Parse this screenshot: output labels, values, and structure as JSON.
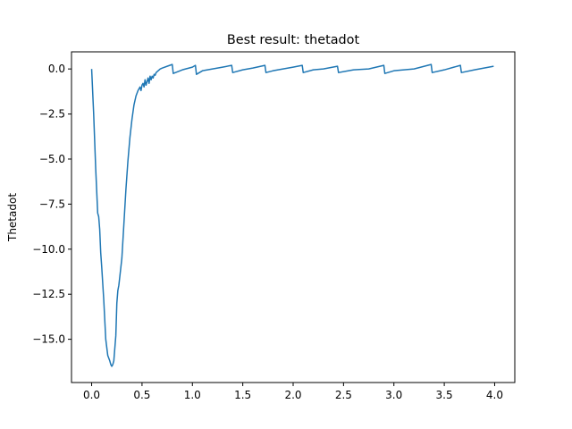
{
  "chart_data": {
    "type": "line",
    "title": "Best result: thetadot",
    "xlabel": "",
    "ylabel": "Thetadot",
    "xlim": [
      -0.2,
      4.2
    ],
    "ylim": [
      -17.4,
      0.95
    ],
    "grid": false,
    "xticks": [
      0.0,
      0.5,
      1.0,
      1.5,
      2.0,
      2.5,
      3.0,
      3.5,
      4.0
    ],
    "xtick_labels": [
      "0.0",
      "0.5",
      "1.0",
      "1.5",
      "2.0",
      "2.5",
      "3.0",
      "3.5",
      "4.0"
    ],
    "yticks": [
      0.0,
      -2.5,
      -5.0,
      -7.5,
      -10.0,
      -12.5,
      -15.0
    ],
    "ytick_labels": [
      "0.0",
      "−2.5",
      "−5.0",
      "−7.5",
      "−10.0",
      "−12.5",
      "−15.0"
    ],
    "colors": {
      "line": "#1f77b4",
      "axes": "#000000",
      "background": "#ffffff"
    },
    "series": [
      {
        "x": [
          0.0,
          0.02,
          0.04,
          0.06,
          0.07,
          0.08,
          0.09,
          0.1,
          0.12,
          0.14,
          0.16,
          0.18,
          0.19,
          0.2,
          0.21,
          0.22,
          0.23,
          0.24,
          0.25,
          0.26,
          0.27,
          0.28,
          0.3,
          0.32,
          0.34,
          0.36,
          0.38,
          0.4,
          0.42,
          0.44,
          0.46,
          0.48,
          0.49,
          0.5,
          0.51,
          0.52,
          0.53,
          0.54,
          0.55,
          0.56,
          0.57,
          0.58,
          0.59,
          0.6,
          0.61,
          0.62,
          0.63,
          0.64,
          0.66,
          0.68,
          0.7,
          0.75,
          0.8,
          0.81,
          0.9,
          1.0,
          1.03,
          1.04,
          1.1,
          1.2,
          1.3,
          1.39,
          1.4,
          1.5,
          1.6,
          1.72,
          1.73,
          1.8,
          1.9,
          2.0,
          2.09,
          2.1,
          2.2,
          2.3,
          2.44,
          2.45,
          2.6,
          2.75,
          2.9,
          2.91,
          3.0,
          3.2,
          3.37,
          3.38,
          3.5,
          3.66,
          3.67,
          3.8,
          3.99
        ],
        "y": [
          0.0,
          -2.5,
          -5.5,
          -8.0,
          -8.2,
          -8.9,
          -10.2,
          -11.0,
          -12.8,
          -15.0,
          -15.9,
          -16.2,
          -16.4,
          -16.5,
          -16.4,
          -16.2,
          -15.5,
          -14.8,
          -13.0,
          -12.3,
          -12.0,
          -11.5,
          -10.5,
          -8.6,
          -6.7,
          -5.1,
          -3.8,
          -2.8,
          -2.0,
          -1.5,
          -1.2,
          -1.0,
          -1.2,
          -0.9,
          -0.8,
          -1.0,
          -0.6,
          -0.9,
          -0.7,
          -0.5,
          -0.8,
          -0.4,
          -0.6,
          -0.4,
          -0.5,
          -0.3,
          -0.35,
          -0.2,
          -0.1,
          0.0,
          0.05,
          0.15,
          0.25,
          -0.25,
          -0.05,
          0.1,
          0.2,
          -0.3,
          -0.1,
          0.0,
          0.1,
          0.2,
          -0.2,
          -0.05,
          0.05,
          0.2,
          -0.2,
          -0.1,
          0.0,
          0.1,
          0.2,
          -0.2,
          -0.05,
          0.0,
          0.15,
          -0.2,
          -0.05,
          0.0,
          0.2,
          -0.25,
          -0.1,
          0.0,
          0.25,
          -0.2,
          -0.05,
          0.2,
          -0.2,
          -0.05,
          0.15
        ]
      }
    ]
  }
}
